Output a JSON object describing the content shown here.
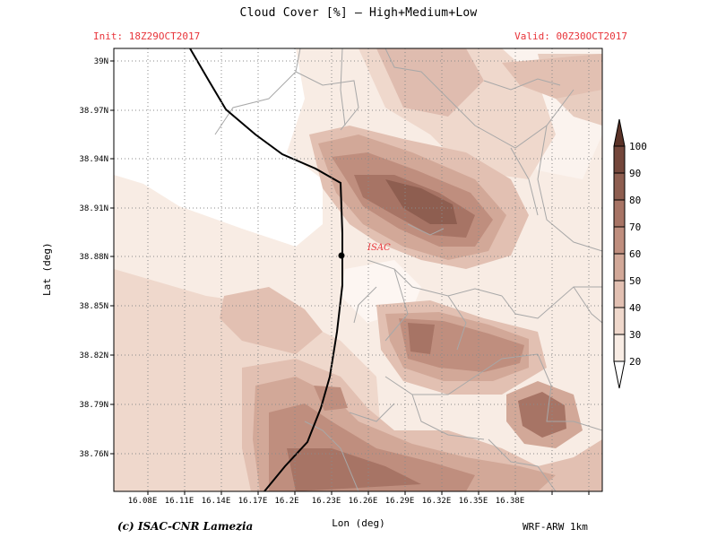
{
  "header": {
    "title": "Cloud Cover [%] — High+Medium+Low",
    "init": "Init: 18Z29OCT2017",
    "valid": "Valid: 00Z30OCT2017"
  },
  "axes": {
    "xlabel": "Lon (deg)",
    "ylabel": "Lat (deg)",
    "xticks": [
      "16.08E",
      "16.11E",
      "16.14E",
      "16.17E",
      "16.2E",
      "16.23E",
      "16.26E",
      "16.29E",
      "16.32E",
      "16.35E",
      "16.38E"
    ],
    "yticks": [
      "39N",
      "38.97N",
      "38.94N",
      "38.91N",
      "38.88N",
      "38.85N",
      "38.82N",
      "38.79N",
      "38.76N"
    ]
  },
  "station": {
    "label": "ISAC"
  },
  "colorbar": {
    "levels": [
      "20",
      "30",
      "40",
      "50",
      "60",
      "70",
      "80",
      "90",
      "100"
    ],
    "colors": [
      "#ffffff",
      "#f8ece4",
      "#efd8cc",
      "#e2c0b2",
      "#d2a898",
      "#bf8e7e",
      "#a77465",
      "#8e5e50",
      "#74473b",
      "#5b3328"
    ]
  },
  "footer": {
    "credit": "(c) ISAC-CNR Lamezia",
    "model": "WRF-ARW 1km"
  },
  "colors": {
    "coastline": "#000000",
    "roads": "#a8a8a8",
    "grid": "#8a8a8a",
    "titles_red": "#e8343a"
  }
}
